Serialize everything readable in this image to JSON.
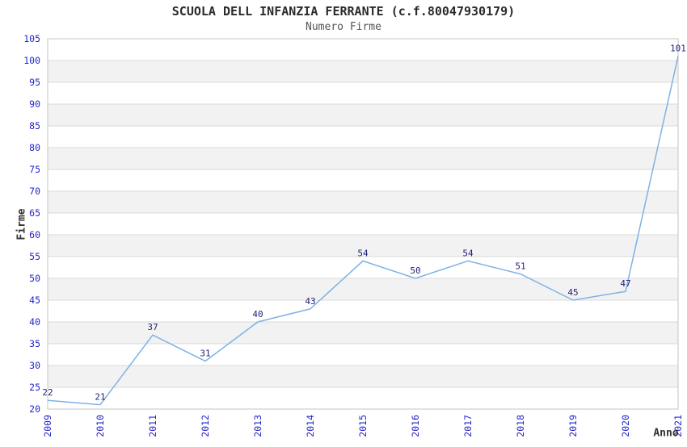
{
  "chart_data": {
    "type": "line",
    "title": "SCUOLA DELL INFANZIA FERRANTE (c.f.80047930179)",
    "subtitle": "Numero Firme",
    "xlabel": "Anno",
    "ylabel": "Firme",
    "x": [
      "2009",
      "2010",
      "2011",
      "2012",
      "2013",
      "2014",
      "2015",
      "2016",
      "2017",
      "2018",
      "2019",
      "2020",
      "2021"
    ],
    "series": [
      {
        "name": "Numero Firme",
        "values": [
          22,
          21,
          37,
          31,
          40,
          43,
          54,
          50,
          54,
          51,
          45,
          47,
          101
        ]
      }
    ],
    "ylim": [
      20,
      105
    ],
    "ytick_step": 5,
    "grid": "horizontal",
    "background_bands": "alternating horizontal stripes",
    "legend": "none",
    "point_labels_visible": true,
    "colors": {
      "line": "#7fb2e5",
      "tick_label": "#2424cc",
      "point_label": "#1f1f77",
      "band": "#f2f2f2",
      "grid": "#d9d9d9",
      "border": "#c6c6c6",
      "title": "#2b2b2b",
      "subtitle": "#555555",
      "axis_label": "#333333",
      "background": "#ffffff"
    }
  }
}
